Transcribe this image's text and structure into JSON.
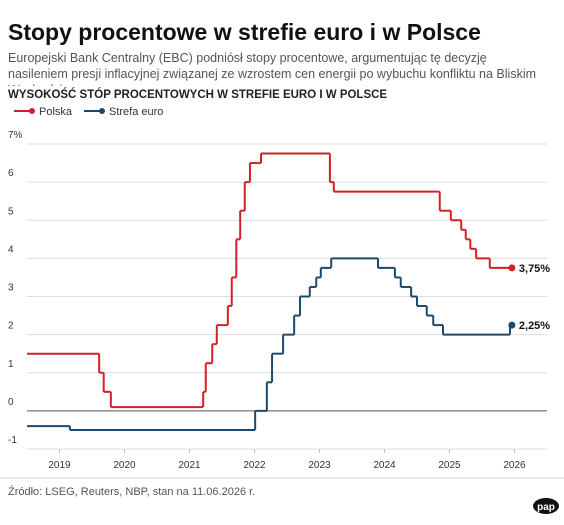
{
  "chart_data": {
    "type": "step-line",
    "title": "Stopy procentowe w strefie euro i w Polsce",
    "subtitle": "Europejski Bank Centralny (EBC) podniósł stopy procentowe, argumentując tę decyzję nasileniem presji inflacyjnej związanej ze wzrostem cen energii po wybuchu konfliktu na Bliskim Wschodzie.",
    "chart_title": "WYSOKOŚĆ STÓP PROCENTOWYCH W STREFIE EURO I W POLSCE",
    "source": "Źródło: LSEG, Reuters, NBP, stan na 11.06.2026 r.",
    "logo": "pap",
    "xlim": [
      2019,
      2027
    ],
    "xticks": [
      {
        "value": 2019.5,
        "label": "2019"
      },
      {
        "value": 2020.5,
        "label": "2020"
      },
      {
        "value": 2021.5,
        "label": "2021"
      },
      {
        "value": 2022.5,
        "label": "2022"
      },
      {
        "value": 2023.5,
        "label": "2023"
      },
      {
        "value": 2024.5,
        "label": "2024"
      },
      {
        "value": 2025.5,
        "label": "2025"
      },
      {
        "value": 2026.5,
        "label": "2026"
      }
    ],
    "ylim": [
      -1,
      7
    ],
    "yticks": [
      -1,
      0,
      1,
      2,
      3,
      4,
      5,
      6,
      {
        "value": 7,
        "label": "7%"
      }
    ],
    "grid": true,
    "series": [
      {
        "name": "Polska",
        "color": "#d42027",
        "end_label": "3,75%",
        "x": [
          2019,
          2020.11,
          2020.18,
          2020.29,
          2021.71,
          2021.75,
          2021.85,
          2021.92,
          2022.09,
          2022.15,
          2022.22,
          2022.28,
          2022.35,
          2022.43,
          2022.6,
          2023.66,
          2023.72,
          2025.35,
          2025.52,
          2025.68,
          2025.75,
          2025.82,
          2025.91,
          2026.12,
          2026.46
        ],
        "values": [
          1.5,
          1.0,
          0.5,
          0.1,
          0.5,
          1.25,
          1.75,
          2.25,
          2.75,
          3.5,
          4.5,
          5.25,
          6.0,
          6.5,
          6.75,
          6.0,
          5.75,
          5.25,
          5.0,
          4.75,
          4.5,
          4.25,
          4.0,
          3.75,
          3.75
        ]
      },
      {
        "name": "Strefa euro",
        "color": "#1a4a6e",
        "end_label": "2,25%",
        "x": [
          2019,
          2019.66,
          2022.51,
          2022.69,
          2022.77,
          2022.94,
          2023.11,
          2023.2,
          2023.35,
          2023.45,
          2023.52,
          2023.68,
          2024.4,
          2024.66,
          2024.75,
          2024.91,
          2025.0,
          2025.15,
          2025.25,
          2025.4,
          2026.43,
          2026.46
        ],
        "values": [
          -0.4,
          -0.5,
          0.0,
          0.75,
          1.5,
          2.0,
          2.5,
          3.0,
          3.25,
          3.5,
          3.75,
          4.0,
          3.75,
          3.5,
          3.25,
          3.0,
          2.75,
          2.5,
          2.25,
          2.0,
          2.25,
          2.25
        ]
      }
    ]
  }
}
